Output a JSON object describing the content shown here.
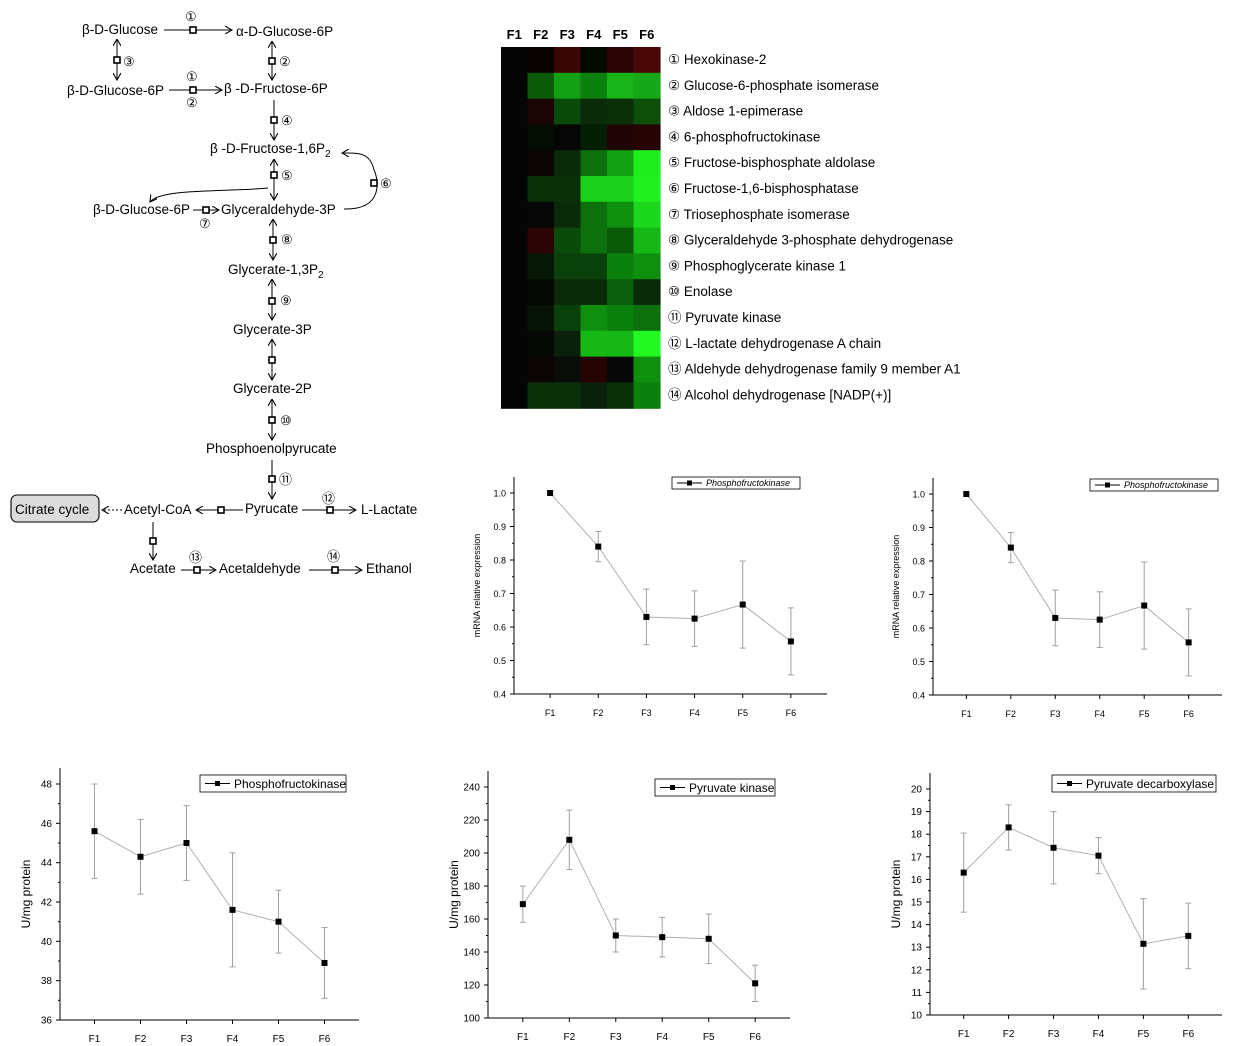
{
  "pathway": {
    "nodes": [
      {
        "id": "b-glc",
        "label": "β-D-Glucose"
      },
      {
        "id": "a-g6p",
        "label": "α-D-Glucose-6P"
      },
      {
        "id": "b-g6p",
        "label": "β-D-Glucose-6P"
      },
      {
        "id": "b-f6p",
        "label": "β -D-Fructose-6P"
      },
      {
        "id": "f16",
        "label": "β -D-Fructose-1,6P",
        "sub": "2"
      },
      {
        "id": "b-g6p2",
        "label": "β-D-Glucose-6P"
      },
      {
        "id": "gap",
        "label": "Glyceraldehyde-3P"
      },
      {
        "id": "g13",
        "label": "Glycerate-1,3P",
        "sub": "2"
      },
      {
        "id": "g3p",
        "label": "Glycerate-3P"
      },
      {
        "id": "g2p",
        "label": "Glycerate-2P"
      },
      {
        "id": "pep",
        "label": "Phosphoenolpyrucate"
      },
      {
        "id": "citrate",
        "label": "Citrate cycle"
      },
      {
        "id": "acoa",
        "label": "Acetyl-CoA"
      },
      {
        "id": "pyr",
        "label": "Pyrucate"
      },
      {
        "id": "lac",
        "label": "L-Lactate"
      },
      {
        "id": "acetate",
        "label": "Acetate"
      },
      {
        "id": "acald",
        "label": "Acetaldehyde"
      },
      {
        "id": "etoh",
        "label": "Ethanol"
      }
    ],
    "enzyme_markers": [
      "①",
      "②",
      "③",
      "④",
      "⑤",
      "⑥",
      "⑦",
      "⑧",
      "⑨",
      "⑩",
      "⑪",
      "⑫",
      "⑬",
      "⑭"
    ]
  },
  "heatmap": {
    "columns": [
      "F1",
      "F2",
      "F3",
      "F4",
      "F5",
      "F6"
    ],
    "enzymes": [
      {
        "num": "①",
        "name": "Hexokinase-2",
        "colors": [
          "#050505",
          "#0a0202",
          "#3a0606",
          "#020a02",
          "#2a0404",
          "#480606"
        ]
      },
      {
        "num": "②",
        "name": "Glucose-6-phosphate isomerase",
        "colors": [
          "#050505",
          "#0a5a0a",
          "#14a014",
          "#0c800c",
          "#18b418",
          "#16a816"
        ]
      },
      {
        "num": "③",
        "name": "Aldose 1-epimerase",
        "colors": [
          "#050505",
          "#1a0404",
          "#0a4a0a",
          "#0a2a0a",
          "#0a300a",
          "#0c500c"
        ]
      },
      {
        "num": "④",
        "name": "6-phosphofructokinase",
        "colors": [
          "#050505",
          "#040c04",
          "#060606",
          "#042004",
          "#1e0404",
          "#260404"
        ]
      },
      {
        "num": "⑤",
        "name": "Fructose-bisphosphate aldolase",
        "colors": [
          "#050505",
          "#0a0404",
          "#0a2a0a",
          "#0c700c",
          "#12a012",
          "#1ef01e"
        ]
      },
      {
        "num": "⑥",
        "name": "Fructose-1,6-bisphosphatase",
        "colors": [
          "#050505",
          "#0a300a",
          "#0a300a",
          "#1ad01a",
          "#1ad01a",
          "#20f020"
        ]
      },
      {
        "num": "⑦",
        "name": "Triosephosphate isomerase",
        "colors": [
          "#050505",
          "#060606",
          "#0a2a0a",
          "#0c700c",
          "#0e900e",
          "#1cd81c"
        ]
      },
      {
        "num": "⑧",
        "name": "Glyceraldehyde 3-phosphate dehydrogenase",
        "colors": [
          "#050505",
          "#2a0404",
          "#0a4a0a",
          "#0c700c",
          "#0a5a0a",
          "#16b816"
        ]
      },
      {
        "num": "⑨",
        "name": "Phosphoglycerate kinase 1",
        "colors": [
          "#050505",
          "#061806",
          "#0a400a",
          "#0a400a",
          "#0c800c",
          "#0e900e"
        ]
      },
      {
        "num": "⑩",
        "name": "Enolase",
        "colors": [
          "#050505",
          "#060806",
          "#0a2a0a",
          "#0a2a0a",
          "#0c600c",
          "#0a2a0a"
        ]
      },
      {
        "num": "⑪",
        "name": "Pyruvate kinase",
        "colors": [
          "#050505",
          "#061206",
          "#0a400a",
          "#0e900e",
          "#0c800c",
          "#0c700c"
        ]
      },
      {
        "num": "⑫",
        "name": "L-lactate dehydrogenase A chain",
        "colors": [
          "#050505",
          "#060806",
          "#0a200a",
          "#16b816",
          "#16b816",
          "#22f822"
        ]
      },
      {
        "num": "⑬",
        "name": "Aldehyde dehydrogenase family 9 member A1",
        "colors": [
          "#050505",
          "#0a0404",
          "#0a0c0a",
          "#260404",
          "#060606",
          "#0e900e"
        ]
      },
      {
        "num": "⑭",
        "name": "Alcohol dehydrogenase [NADP(+)]",
        "colors": [
          "#050505",
          "#0a300a",
          "#0a300a",
          "#0a200a",
          "#0a300a",
          "#0c800c"
        ]
      }
    ]
  },
  "chart_data": [
    {
      "type": "line",
      "ylabel": "mRNA relative expression",
      "legend": "Phosphofructokinase",
      "legend_italic": true,
      "categories": [
        "F1",
        "F2",
        "F3",
        "F4",
        "F5",
        "F6"
      ],
      "values": [
        1.0,
        0.84,
        0.63,
        0.625,
        0.667,
        0.557
      ],
      "errors": [
        0,
        0.045,
        0.083,
        0.083,
        0.13,
        0.1
      ],
      "ylim": [
        0.4,
        1.0
      ],
      "yticks": [
        "0.4",
        "0.5",
        "0.6",
        "0.7",
        "0.8",
        "0.9",
        "1.0"
      ]
    },
    {
      "type": "line",
      "ylabel": "mRNA relative expression",
      "legend": "Phosphofructokinase",
      "legend_italic": true,
      "categories": [
        "F1",
        "F2",
        "F3",
        "F4",
        "F5",
        "F6"
      ],
      "values": [
        1.0,
        0.84,
        0.63,
        0.625,
        0.667,
        0.557
      ],
      "errors": [
        0,
        0.045,
        0.083,
        0.083,
        0.13,
        0.1
      ],
      "ylim": [
        0.4,
        1.0
      ],
      "yticks": [
        "0.4",
        "0.5",
        "0.6",
        "0.7",
        "0.8",
        "0.9",
        "1.0"
      ]
    },
    {
      "type": "line",
      "ylabel": "U/mg protein",
      "legend": "Phosphofructokinase",
      "legend_italic": false,
      "categories": [
        "F1",
        "F2",
        "F3",
        "F4",
        "F5",
        "F6"
      ],
      "values": [
        45.6,
        44.3,
        45.0,
        41.6,
        41.0,
        38.9
      ],
      "errors": [
        2.4,
        1.9,
        1.9,
        2.9,
        1.6,
        1.8
      ],
      "ylim": [
        36,
        48
      ],
      "yticks": [
        "36",
        "38",
        "40",
        "42",
        "44",
        "46",
        "48"
      ]
    },
    {
      "type": "line",
      "ylabel": "U/mg protein",
      "legend": "Pyruvate kinase",
      "legend_italic": false,
      "categories": [
        "F1",
        "F2",
        "F3",
        "F4",
        "F5",
        "F6"
      ],
      "values": [
        169,
        208,
        150,
        149,
        148,
        121
      ],
      "errors": [
        11,
        18,
        10,
        12,
        15,
        11
      ],
      "ylim": [
        100,
        240
      ],
      "yticks": [
        "100",
        "120",
        "140",
        "160",
        "180",
        "200",
        "220",
        "240"
      ]
    },
    {
      "type": "line",
      "ylabel": "U/mg protein",
      "legend": "Pyruvate decarboxylase",
      "legend_italic": false,
      "categories": [
        "F1",
        "F2",
        "F3",
        "F4",
        "F5",
        "F6"
      ],
      "values": [
        16.3,
        18.3,
        17.4,
        17.05,
        13.15,
        13.5
      ],
      "errors": [
        1.75,
        1.0,
        1.6,
        0.8,
        2.0,
        1.45
      ],
      "ylim": [
        10,
        20
      ],
      "yticks": [
        "10",
        "11",
        "12",
        "13",
        "14",
        "15",
        "16",
        "17",
        "18",
        "19",
        "20"
      ]
    }
  ]
}
